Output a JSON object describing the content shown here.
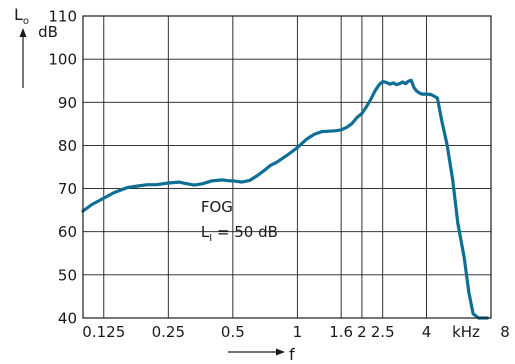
{
  "chart_data": {
    "type": "line",
    "title": "",
    "ylabel": "L",
    "ylabel_sub": "o",
    "yunit": "dB",
    "xlabel": "f",
    "xunit": "kHz",
    "xscale": "log",
    "xlim": [
      0.1,
      8
    ],
    "ylim": [
      40,
      110
    ],
    "grid": true,
    "legend": "none",
    "x_ticks": [
      0.125,
      0.25,
      0.5,
      1,
      1.6,
      2,
      2.5,
      4,
      8
    ],
    "x_tick_labels": [
      "0.125",
      "0.25",
      "0.5",
      "1",
      "1.6",
      "2",
      "2.5",
      "4",
      "8"
    ],
    "y_ticks": [
      40,
      50,
      60,
      70,
      80,
      90,
      100,
      110
    ],
    "y_tick_labels": [
      "40",
      "50",
      "60",
      "70",
      "80",
      "90",
      "100",
      "110"
    ],
    "annotation": {
      "line1": "FOG",
      "line2_prefix": "L",
      "line2_sub": "I",
      "line2_suffix": " = 50 dB",
      "x": 0.5,
      "y": 65
    },
    "line_color": "#0f6e94",
    "series": [
      {
        "x": [
          0.1,
          0.11,
          0.125,
          0.14,
          0.16,
          0.18,
          0.2,
          0.22,
          0.25,
          0.28,
          0.3,
          0.33,
          0.36,
          0.4,
          0.45,
          0.48,
          0.5,
          0.55,
          0.6,
          0.65,
          0.7,
          0.75,
          0.8,
          0.9,
          1.0,
          1.1,
          1.2,
          1.3,
          1.4,
          1.5,
          1.6,
          1.7,
          1.8,
          1.9,
          2.0,
          2.1,
          2.2,
          2.3,
          2.4,
          2.5,
          2.6,
          2.7,
          2.8,
          2.9,
          3.0,
          3.1,
          3.2,
          3.3,
          3.4,
          3.5,
          3.6,
          3.7,
          3.8,
          3.9,
          4.0,
          4.2,
          4.5,
          4.7,
          5.0,
          5.3,
          5.6,
          6.0,
          6.3,
          6.6,
          7.0,
          7.4,
          7.7
        ],
        "values": [
          64.8,
          66.3,
          67.8,
          69.1,
          70.2,
          70.6,
          70.9,
          70.9,
          71.3,
          71.5,
          71.2,
          70.8,
          71.1,
          71.8,
          72.0,
          71.8,
          71.8,
          71.5,
          71.9,
          73.0,
          74.2,
          75.4,
          76.1,
          77.8,
          79.5,
          81.4,
          82.6,
          83.2,
          83.3,
          83.4,
          83.6,
          84.2,
          85.1,
          86.5,
          87.4,
          89.0,
          90.7,
          92.6,
          94.0,
          94.8,
          94.6,
          94.2,
          94.5,
          94.1,
          94.3,
          94.7,
          94.3,
          94.9,
          95.1,
          93.4,
          92.6,
          92.2,
          91.9,
          91.9,
          91.9,
          91.8,
          91.0,
          86.0,
          80.0,
          72.0,
          62.0,
          54.0,
          46.0,
          41.0,
          40.0,
          40.0,
          40.0
        ]
      }
    ]
  }
}
